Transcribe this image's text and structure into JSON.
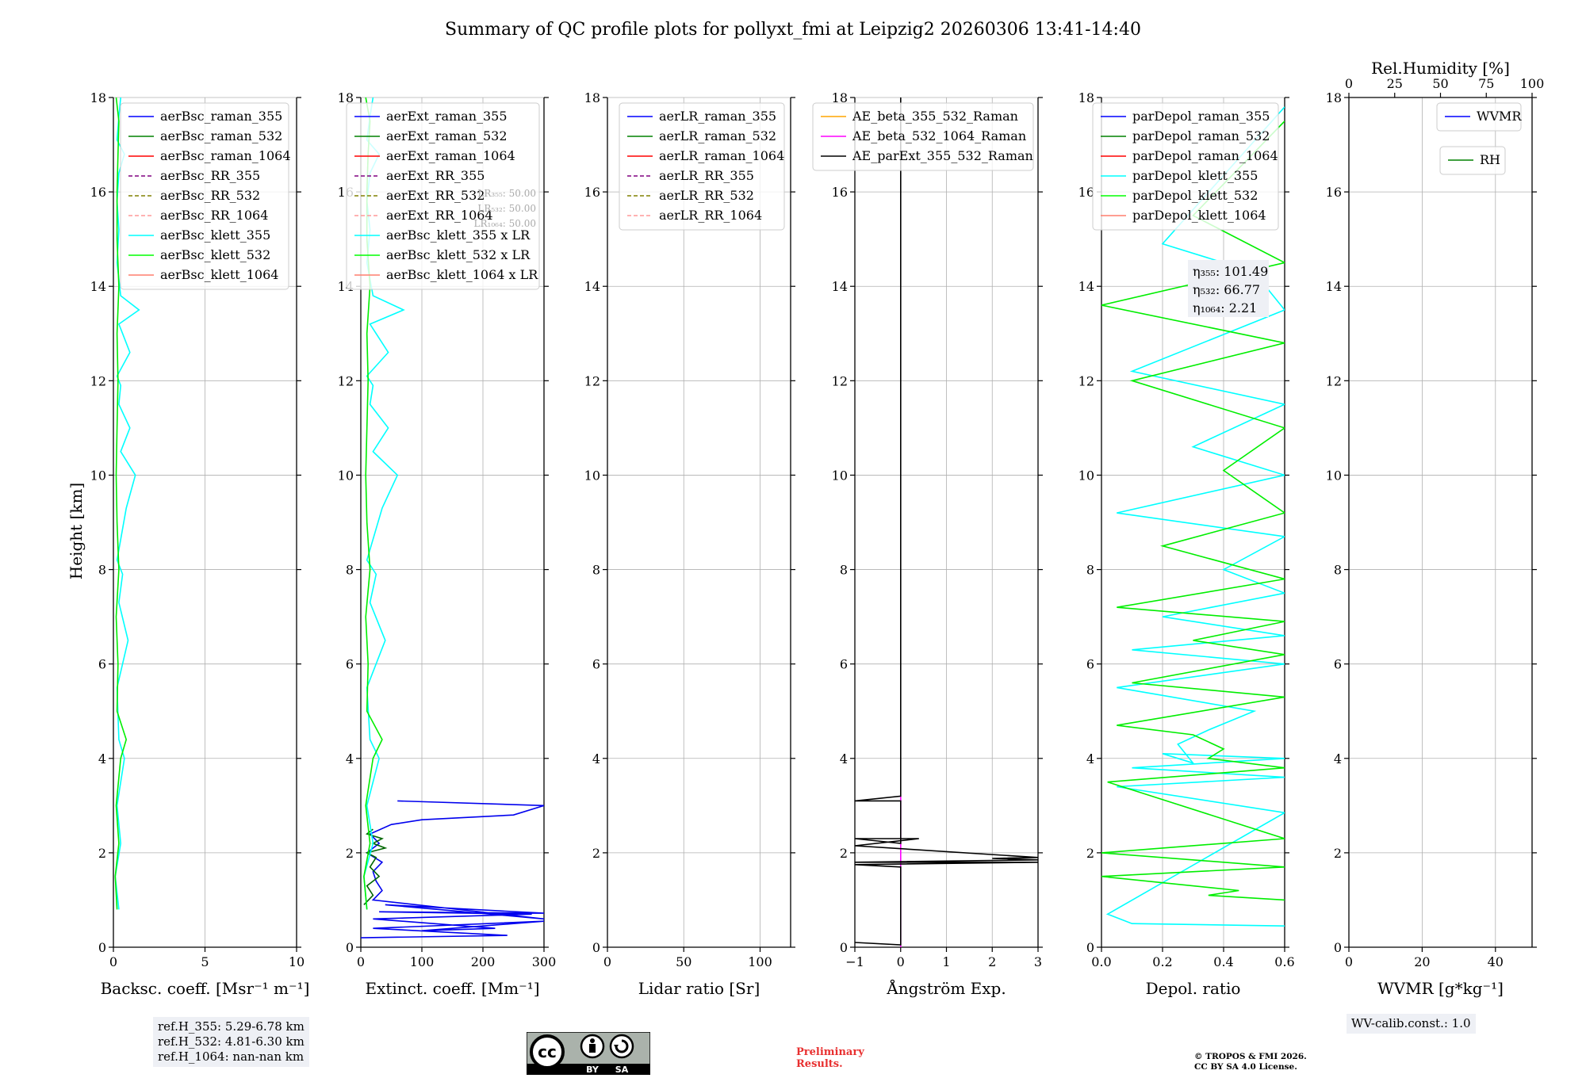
{
  "figure": {
    "title": "Summary of QC profile plots for pollyxt_fmi at Leipzig2 20260306 13:41-14:40",
    "ylabel": "Height [km]"
  },
  "chart_data": [
    {
      "type": "line",
      "name": "backscatter",
      "xlabel": "Backsc. coeff. [Msr⁻¹ m⁻¹]",
      "xlim": [
        0,
        10
      ],
      "ylim": [
        0,
        18
      ],
      "xticks": [
        "0",
        "5",
        "10"
      ],
      "legend": [
        "aerBsc_raman_355",
        "aerBsc_raman_532",
        "aerBsc_raman_1064",
        "aerBsc_RR_355",
        "aerBsc_RR_532",
        "aerBsc_RR_1064",
        "aerBsc_klett_355",
        "aerBsc_klett_532",
        "aerBsc_klett_1064"
      ],
      "series": [
        {
          "name": "aerBsc_klett_355",
          "color": "#00ffff",
          "x": [
            0.3,
            0.1,
            0.4,
            0.2,
            0.6,
            0.3,
            0.2,
            0.8,
            0.3,
            0.5,
            0.2,
            0.7,
            1.2,
            0.4,
            0.9,
            0.3,
            0.4,
            0.2,
            0.9,
            0.5,
            0.3,
            1.4,
            0.4,
            0.2,
            0.3,
            0.2,
            0.3,
            0.6,
            0.2,
            0.3,
            0.4
          ],
          "y": [
            0.8,
            1.5,
            2.2,
            3.0,
            4.0,
            4.4,
            5.5,
            6.5,
            7.3,
            7.9,
            8.2,
            9.3,
            10.0,
            10.5,
            11.0,
            11.5,
            11.9,
            12.1,
            12.6,
            13.0,
            13.2,
            13.5,
            13.8,
            14.5,
            15.2,
            15.8,
            16.4,
            16.8,
            17.1,
            17.6,
            18.0
          ]
        },
        {
          "name": "aerBsc_klett_532",
          "color": "#00ee00",
          "x": [
            0.2,
            0.1,
            0.3,
            0.15,
            0.4,
            0.7,
            0.2,
            0.25,
            0.15,
            0.3,
            0.2,
            0.15,
            0.2,
            0.25,
            0.2,
            0.3,
            0.2,
            0.2,
            0.25,
            0.3,
            0.15
          ],
          "y": [
            0.8,
            1.5,
            2.2,
            3.0,
            4.0,
            4.4,
            5.0,
            6.0,
            7.0,
            8.0,
            9.0,
            10.0,
            11.0,
            12.0,
            13.0,
            14.0,
            15.0,
            16.0,
            16.8,
            17.5,
            18.0
          ]
        }
      ]
    },
    {
      "type": "line",
      "name": "extinction",
      "xlabel": "Extinct. coeff. [Mm⁻¹]",
      "xlim": [
        0,
        300
      ],
      "ylim": [
        0,
        18
      ],
      "xticks": [
        "0",
        "100",
        "200",
        "300"
      ],
      "legend": [
        "aerExt_raman_355",
        "aerExt_raman_532",
        "aerExt_raman_1064",
        "aerExt_RR_355",
        "aerExt_RR_532",
        "aerExt_RR_1064",
        "aerBsc_klett_355 x LR",
        "aerBsc_klett_532 x LR",
        "aerBsc_klett_1064 x LR"
      ],
      "lr_annotation": [
        "LR₃₅₅: 50.00",
        "LR₅₃₂: 50.00",
        "LR₁₀₆₄: 50.00"
      ],
      "series": [
        {
          "name": "aerExt_raman_355",
          "color": "#0000ee",
          "x": [
            0,
            240,
            20,
            300,
            100,
            220,
            20,
            280,
            30,
            300,
            40,
            300,
            20,
            35,
            25,
            20,
            35,
            10,
            30,
            15,
            50,
            100,
            250,
            300,
            60
          ],
          "y": [
            0.2,
            0.25,
            0.4,
            0.55,
            0.35,
            0.4,
            0.6,
            0.7,
            0.75,
            0.72,
            0.9,
            0.6,
            1.0,
            1.2,
            1.4,
            1.6,
            1.8,
            2.0,
            2.2,
            2.4,
            2.6,
            2.7,
            2.8,
            3.0,
            3.1
          ]
        },
        {
          "name": "aerExt_raman_532",
          "color": "#006600",
          "x": [
            5,
            20,
            10,
            30,
            15,
            25,
            10,
            40,
            20,
            35,
            10,
            20
          ],
          "y": [
            0.9,
            1.1,
            1.3,
            1.5,
            1.7,
            1.9,
            2.0,
            2.1,
            2.2,
            2.3,
            2.4,
            2.5
          ]
        },
        {
          "name": "aerBsc_klett_355 x LR",
          "color": "#00ffff",
          "x": [
            10,
            5,
            20,
            10,
            30,
            15,
            10,
            40,
            15,
            25,
            10,
            35,
            60,
            20,
            45,
            15,
            20,
            10,
            45,
            25,
            15,
            70,
            20,
            10,
            15,
            10,
            15,
            30,
            10,
            15,
            20
          ],
          "y": [
            0.8,
            1.5,
            2.2,
            3.0,
            4.0,
            4.4,
            5.5,
            6.5,
            7.3,
            7.9,
            8.2,
            9.3,
            10.0,
            10.5,
            11.0,
            11.5,
            11.9,
            12.1,
            12.6,
            13.0,
            13.2,
            13.5,
            13.8,
            14.5,
            15.2,
            15.8,
            16.4,
            16.8,
            17.1,
            17.6,
            18.0
          ]
        },
        {
          "name": "aerBsc_klett_532 x LR",
          "color": "#00ee00",
          "x": [
            10,
            5,
            15,
            8,
            20,
            35,
            10,
            12,
            8,
            15,
            10,
            8,
            10,
            12,
            10,
            15,
            10,
            10,
            12,
            15,
            8
          ],
          "y": [
            0.8,
            1.5,
            2.2,
            3.0,
            4.0,
            4.4,
            5.0,
            6.0,
            7.0,
            8.0,
            9.0,
            10.0,
            11.0,
            12.0,
            13.0,
            14.0,
            15.0,
            16.0,
            16.8,
            17.5,
            18.0
          ]
        }
      ]
    },
    {
      "type": "line",
      "name": "lidar_ratio",
      "xlabel": "Lidar ratio [Sr]",
      "xlim": [
        0,
        120
      ],
      "ylim": [
        0,
        18
      ],
      "xticks": [
        "0",
        "50",
        "100"
      ],
      "legend": [
        "aerLR_raman_355",
        "aerLR_raman_532",
        "aerLR_raman_1064",
        "aerLR_RR_355",
        "aerLR_RR_532",
        "aerLR_RR_1064"
      ],
      "series": []
    },
    {
      "type": "line",
      "name": "angstrom",
      "xlabel": "Ångström Exp.",
      "xlim": [
        -1,
        3
      ],
      "ylim": [
        0,
        18
      ],
      "xticks": [
        "−1",
        "0",
        "1",
        "2",
        "3"
      ],
      "legend": [
        "AE_beta_355_532_Raman",
        "AE_beta_532_1064_Raman",
        "AE_parExt_355_532_Raman"
      ],
      "series": [
        {
          "name": "AE_beta_532_1064_Raman",
          "color": "#ff00ff",
          "x": [
            0,
            0
          ],
          "y": [
            0,
            3.2
          ]
        },
        {
          "name": "AE_parExt_355_532_Raman",
          "color": "#000000",
          "x": [
            -1,
            0,
            0,
            -1,
            3,
            -1,
            3,
            2,
            3,
            -1,
            0.4,
            -1,
            0,
            0,
            -1,
            0,
            0,
            0
          ],
          "y": [
            0.1,
            0.05,
            1.7,
            1.75,
            1.8,
            1.8,
            1.85,
            1.88,
            1.9,
            2.15,
            2.3,
            2.3,
            2.2,
            3.1,
            3.1,
            3.2,
            10,
            18
          ]
        }
      ]
    },
    {
      "type": "line",
      "name": "depolarization",
      "xlabel": "Depol. ratio",
      "xlim": [
        0,
        0.6
      ],
      "ylim": [
        0,
        18
      ],
      "xticks": [
        "0.0",
        "0.2",
        "0.4",
        "0.6"
      ],
      "legend": [
        "parDepol_raman_355",
        "parDepol_raman_532",
        "parDepol_raman_1064",
        "parDepol_klett_355",
        "parDepol_klett_532",
        "parDepol_klett_1064"
      ],
      "annotation": [
        "η₃₅₅: 101.49",
        "η₅₃₂: 66.77",
        "η₁₀₆₄: 2.21"
      ],
      "series": [
        {
          "name": "parDepol_klett_355",
          "color": "#00ffff",
          "x": [
            0.6,
            0.1,
            0.02,
            0.6,
            0.05,
            0.6,
            0.1,
            0.6,
            0.2,
            0.3,
            0.25,
            0.35,
            0.5,
            0.05,
            0.6,
            0.1,
            0.6,
            0.2,
            0.6,
            0.4,
            0.6,
            0.05,
            0.6,
            0.3,
            0.6,
            0.1,
            0.6,
            0.5,
            0.2,
            0.6
          ],
          "y": [
            0.45,
            0.5,
            0.7,
            2.85,
            3.4,
            3.6,
            3.8,
            4.0,
            4.1,
            3.9,
            4.3,
            4.6,
            5.0,
            5.5,
            6.0,
            6.3,
            6.6,
            7.0,
            7.5,
            8.0,
            8.7,
            9.2,
            10.0,
            10.6,
            11.5,
            12.2,
            13.5,
            14.3,
            14.9,
            17.8
          ]
        },
        {
          "name": "parDepol_klett_532",
          "color": "#00ee00",
          "x": [
            0.6,
            0.35,
            0.45,
            0.0,
            0.6,
            0.0,
            0.6,
            0.02,
            0.6,
            0.35,
            0.4,
            0.3,
            0.05,
            0.6,
            0.1,
            0.6,
            0.3,
            0.6,
            0.05,
            0.6,
            0.2,
            0.6,
            0.4,
            0.6,
            0.1,
            0.6,
            0.0,
            0.6,
            0.3,
            0.6
          ],
          "y": [
            1.0,
            1.1,
            1.2,
            1.5,
            1.7,
            2.0,
            2.3,
            3.5,
            3.8,
            4.0,
            4.2,
            4.5,
            4.7,
            5.3,
            5.6,
            6.2,
            6.5,
            6.9,
            7.2,
            7.8,
            8.5,
            9.2,
            10.1,
            11.0,
            12.0,
            12.8,
            13.6,
            14.5,
            15.5,
            17.5
          ]
        }
      ]
    },
    {
      "type": "line",
      "name": "wvmr",
      "xlabel": "WVMR [g*kg⁻¹]",
      "top_xlabel": "Rel.Humidity [%]",
      "xlim": [
        0,
        50
      ],
      "ylim": [
        0,
        18
      ],
      "top_xlim": [
        0,
        100
      ],
      "xticks": [
        "0",
        "20",
        "40"
      ],
      "top_xticks": [
        "0",
        "25",
        "50",
        "75",
        "100"
      ],
      "legend": [
        "WVMR"
      ],
      "legend2": [
        "RH"
      ],
      "series": []
    }
  ],
  "yticks": [
    "0",
    "2",
    "4",
    "6",
    "8",
    "10",
    "12",
    "14",
    "16",
    "18"
  ],
  "colors": {
    "blue": "#0000ff",
    "green": "#008000",
    "red": "#ff0000",
    "purple": "#800080",
    "olive": "#808000",
    "salmon": "#ff9999",
    "cyan": "#00ffff",
    "lime": "#00ff00",
    "coral": "#ff7f6f",
    "orange": "#ffa500",
    "magenta": "#ff00ff",
    "black": "#000000"
  },
  "reference_heights": [
    "ref.H_355: 5.29-6.78 km",
    "ref.H_532: 4.81-6.30 km",
    "ref.H_1064: nan-nan km"
  ],
  "wv_calib": "WV-calib.const.: 1.0",
  "license_badge": {
    "cc": "cc",
    "by": "BY",
    "sa": "SA"
  },
  "preliminary": {
    "line1": "Preliminary",
    "line2": "Results."
  },
  "copyright": {
    "line1": "© TROPOS & FMI 2026.",
    "line2": "CC BY SA 4.0 License."
  }
}
